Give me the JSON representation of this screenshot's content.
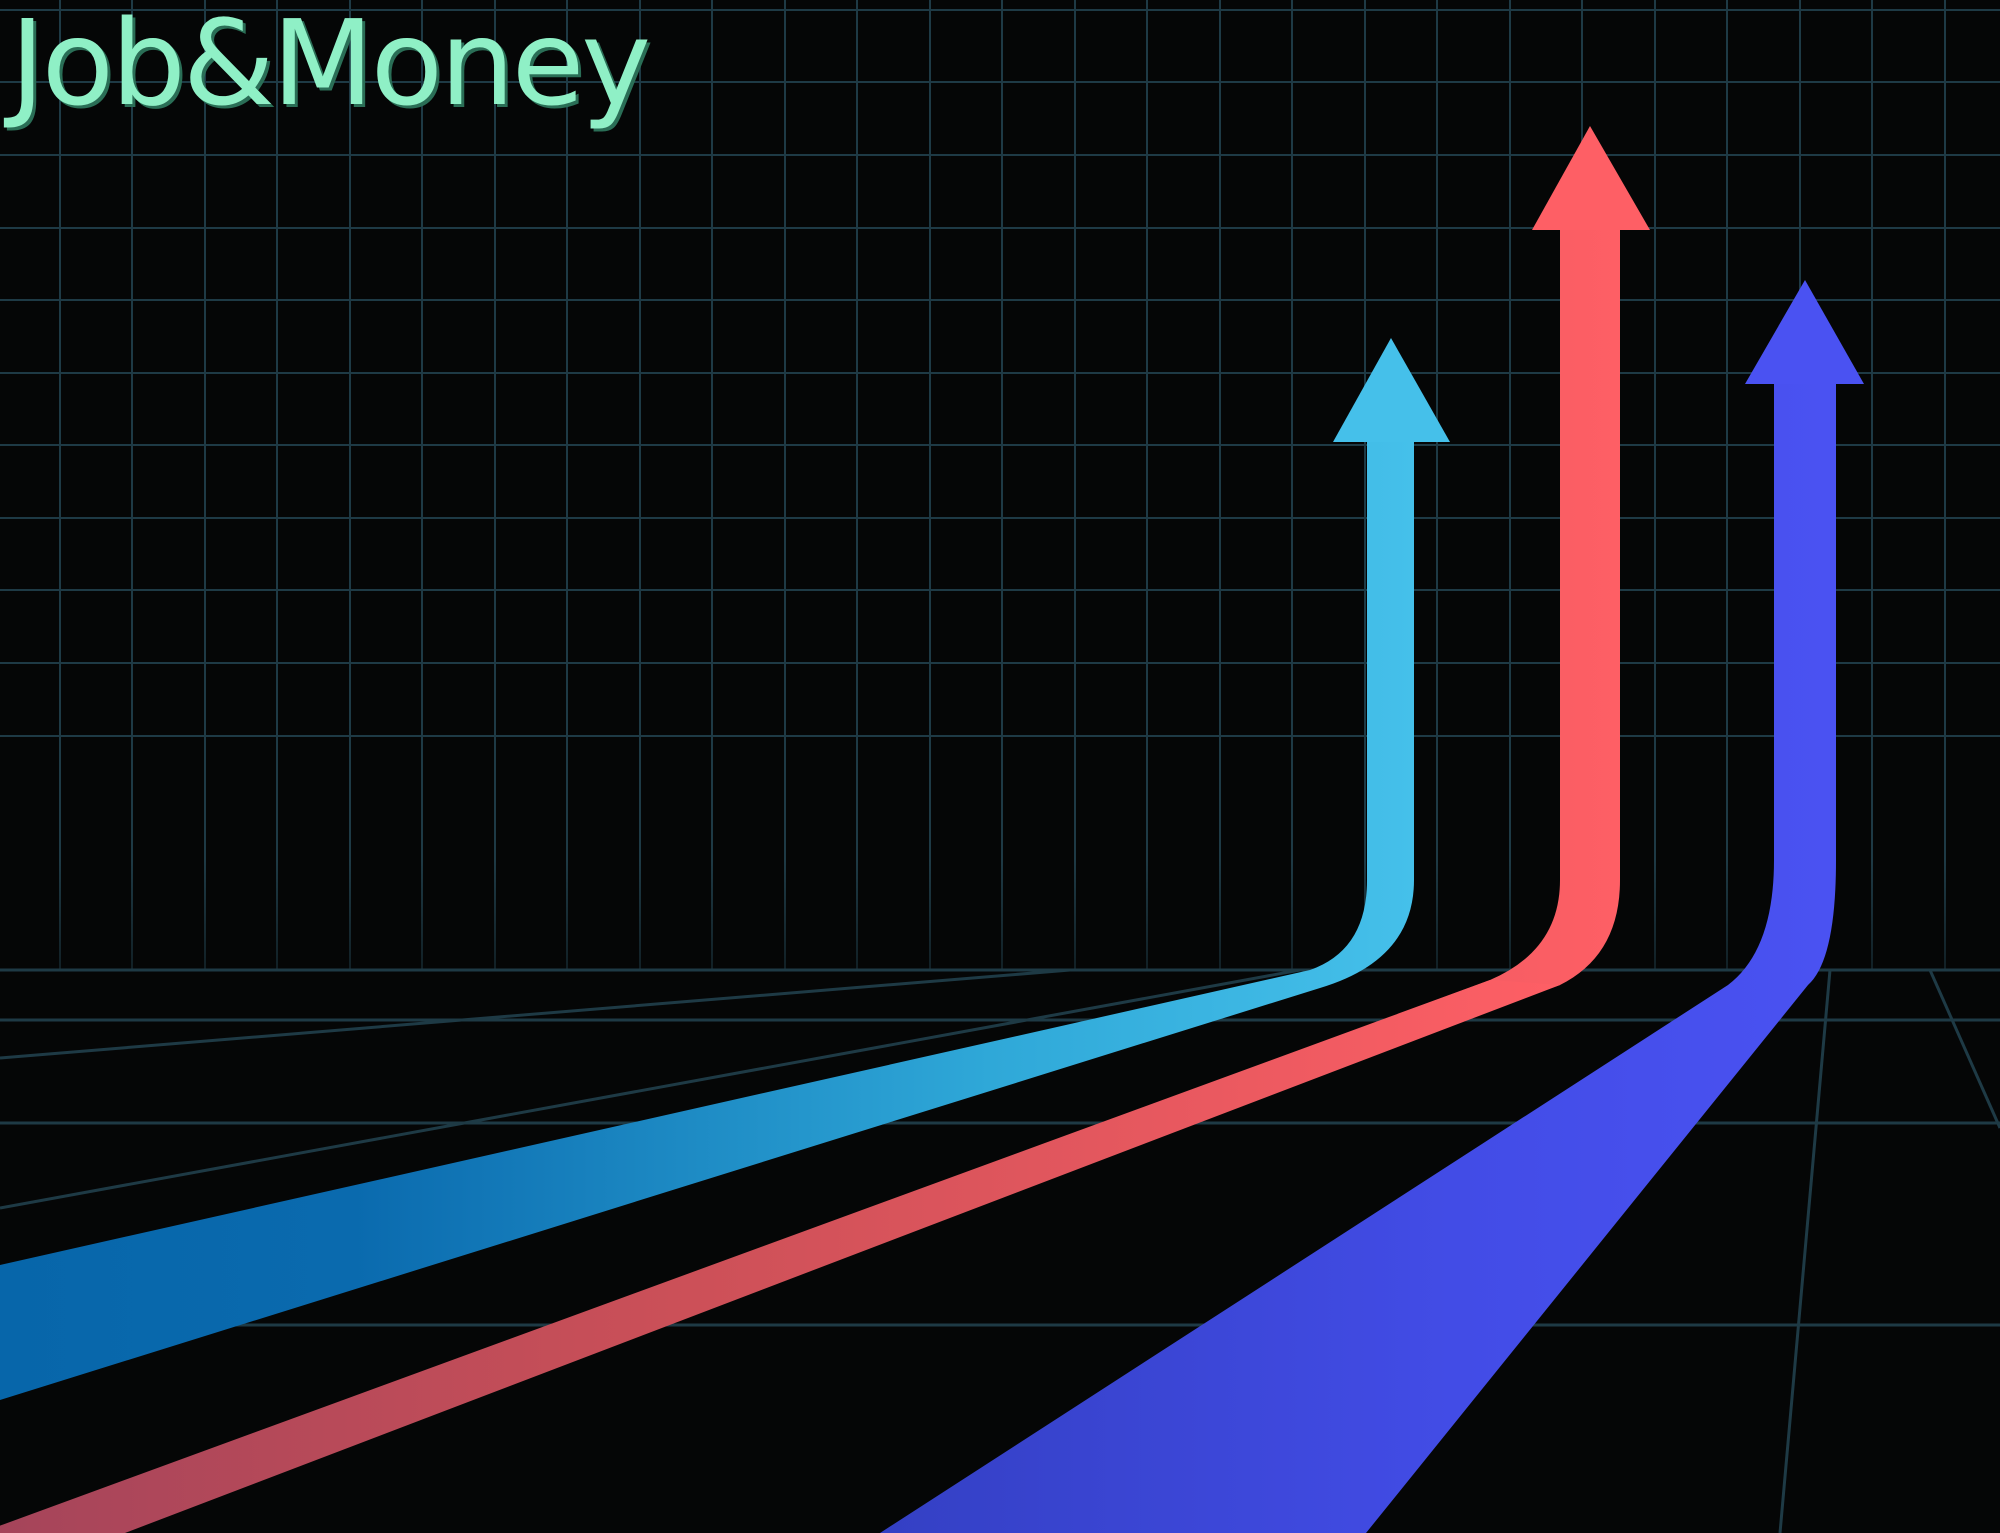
{
  "brand": {
    "title": "Job&Money"
  },
  "colors": {
    "background": "#050606",
    "grid": "#1e3a45",
    "title": "#8ff0c6",
    "arrow_cyan": "#45c0ea",
    "arrow_red": "#fe5f65",
    "arrow_blue": "#4a52f2"
  },
  "arrows": [
    {
      "name": "cyan-arrow",
      "color": "cyan"
    },
    {
      "name": "red-arrow",
      "color": "red"
    },
    {
      "name": "blue-arrow",
      "color": "blue"
    }
  ]
}
